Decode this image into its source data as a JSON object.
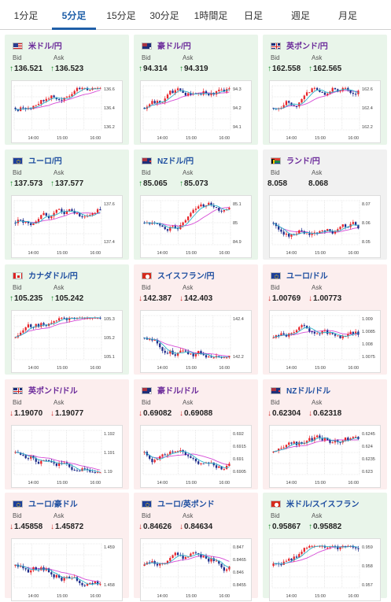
{
  "tabs": [
    {
      "label": "1分足"
    },
    {
      "label": "5分足"
    },
    {
      "label": "15分足"
    },
    {
      "label": "30分足"
    },
    {
      "label": "1時間足"
    },
    {
      "label": "日足"
    },
    {
      "label": "週足"
    },
    {
      "label": "月足"
    }
  ],
  "active_tab": 1,
  "labels": {
    "bid": "Bid",
    "ask": "Ask"
  },
  "cards": [
    {
      "pair": "米ドル/円",
      "flag": "us",
      "name_color": "purple",
      "trend": "up",
      "bid": "136.521",
      "ask": "136.523",
      "bid_dir": "up",
      "ask_dir": "up",
      "yticks": [
        "136.6",
        "136.4",
        "136.2"
      ],
      "xticks": [
        "14:00",
        "15:00",
        "16:00"
      ]
    },
    {
      "pair": "豪ドル/円",
      "flag": "au",
      "name_color": "purple",
      "trend": "up",
      "bid": "94.314",
      "ask": "94.319",
      "bid_dir": "up",
      "ask_dir": "up",
      "yticks": [
        "94.3",
        "94.2",
        "94.1"
      ],
      "xticks": [
        "14:00",
        "15:00",
        "16:00"
      ]
    },
    {
      "pair": "英ポンド/円",
      "flag": "uk",
      "name_color": "purple",
      "trend": "up",
      "bid": "162.558",
      "ask": "162.565",
      "bid_dir": "up",
      "ask_dir": "up",
      "yticks": [
        "162.6",
        "162.4",
        "162.2"
      ],
      "xticks": [
        "14:00",
        "15:00",
        "16:00"
      ]
    },
    {
      "pair": "ユーロ/円",
      "flag": "eu",
      "name_color": "blue",
      "trend": "up",
      "bid": "137.573",
      "ask": "137.577",
      "bid_dir": "up",
      "ask_dir": "up",
      "yticks": [
        "137.6",
        "137.4"
      ],
      "xticks": [
        "14:00",
        "15:00",
        "16:00"
      ]
    },
    {
      "pair": "NZドル/円",
      "flag": "nz",
      "name_color": "blue",
      "trend": "up",
      "bid": "85.065",
      "ask": "85.073",
      "bid_dir": "up",
      "ask_dir": "up",
      "yticks": [
        "85.1",
        "85",
        "84.9"
      ],
      "xticks": [
        "14:00",
        "15:00",
        "16:00"
      ]
    },
    {
      "pair": "ランド/円",
      "flag": "za",
      "name_color": "purple",
      "trend": "flat",
      "bid": "8.058",
      "ask": "8.068",
      "bid_dir": "none",
      "ask_dir": "none",
      "yticks": [
        "8.07",
        "8.06",
        "8.05"
      ],
      "xticks": [
        "14:00",
        "15:00",
        "16:00"
      ]
    },
    {
      "pair": "カナダドル/円",
      "flag": "ca",
      "name_color": "blue",
      "trend": "up",
      "bid": "105.235",
      "ask": "105.242",
      "bid_dir": "up",
      "ask_dir": "up",
      "yticks": [
        "105.3",
        "105.2",
        "105.1"
      ],
      "xticks": [
        "14:00",
        "15:00",
        "16:00"
      ]
    },
    {
      "pair": "スイスフラン/円",
      "flag": "ch",
      "name_color": "blue",
      "trend": "down",
      "bid": "142.387",
      "ask": "142.403",
      "bid_dir": "down",
      "ask_dir": "down",
      "yticks": [
        "142.4",
        "142.2"
      ],
      "xticks": [
        "14:00",
        "15:00",
        "16:00"
      ]
    },
    {
      "pair": "ユーロ/ドル",
      "flag": "eu",
      "name_color": "blue",
      "trend": "down",
      "bid": "1.00769",
      "ask": "1.00773",
      "bid_dir": "down",
      "ask_dir": "down",
      "yticks": [
        "1.009",
        "1.0085",
        "1.008",
        "1.0075"
      ],
      "xticks": [
        "14:00",
        "15:00",
        "16:00"
      ]
    },
    {
      "pair": "英ポンド/ドル",
      "flag": "uk",
      "name_color": "purple",
      "trend": "down",
      "bid": "1.19070",
      "ask": "1.19077",
      "bid_dir": "down",
      "ask_dir": "down",
      "yticks": [
        "1.192",
        "1.191",
        "1.19"
      ],
      "xticks": [
        "14:00",
        "15:00",
        "16:00"
      ]
    },
    {
      "pair": "豪ドル/ドル",
      "flag": "au",
      "name_color": "purple",
      "trend": "down",
      "bid": "0.69082",
      "ask": "0.69088",
      "bid_dir": "down",
      "ask_dir": "down",
      "yticks": [
        "0.692",
        "0.6915",
        "0.691",
        "0.6905"
      ],
      "xticks": [
        "14:00",
        "15:00",
        "16:00"
      ]
    },
    {
      "pair": "NZドル/ドル",
      "flag": "nz",
      "name_color": "blue",
      "trend": "down",
      "bid": "0.62304",
      "ask": "0.62318",
      "bid_dir": "down",
      "ask_dir": "down",
      "yticks": [
        "0.6245",
        "0.624",
        "0.6235",
        "0.623"
      ],
      "xticks": [
        "14:00",
        "15:00",
        "16:00"
      ]
    },
    {
      "pair": "ユーロ/豪ドル",
      "flag": "eu",
      "name_color": "blue",
      "trend": "down",
      "bid": "1.45858",
      "ask": "1.45872",
      "bid_dir": "down",
      "ask_dir": "down",
      "yticks": [
        "1.459",
        "1.458"
      ],
      "xticks": [
        "14:00",
        "15:00",
        "16:00"
      ]
    },
    {
      "pair": "ユーロ/英ポンド",
      "flag": "eu",
      "name_color": "blue",
      "trend": "down",
      "bid": "0.84626",
      "ask": "0.84634",
      "bid_dir": "down",
      "ask_dir": "down",
      "yticks": [
        "0.847",
        "0.8465",
        "0.846",
        "0.8455"
      ],
      "xticks": [
        "14:00",
        "15:00",
        "16:00"
      ]
    },
    {
      "pair": "米ドル/スイスフラン",
      "flag": "ch",
      "name_color": "blue",
      "trend": "up",
      "bid": "0.95867",
      "ask": "0.95882",
      "bid_dir": "up",
      "ask_dir": "up",
      "yticks": [
        "0.959",
        "0.958",
        "0.957"
      ],
      "xticks": [
        "14:00",
        "15:00",
        "16:00"
      ]
    }
  ],
  "colors": {
    "active_tab": "#1f5fa8",
    "up_card": "#e9f5ea",
    "down_card": "#fceeee",
    "flat_card": "#f1f1f1",
    "candle_up": "#e8252b",
    "candle_down": "#1f2d8c",
    "ma_short": "#2bb3c9",
    "ma_long": "#d64bd6",
    "pair_blue": "#1f4fa0",
    "pair_purple": "#6b2a9a",
    "arrow_up": "#1a8a2a",
    "arrow_down": "#d0312d"
  }
}
